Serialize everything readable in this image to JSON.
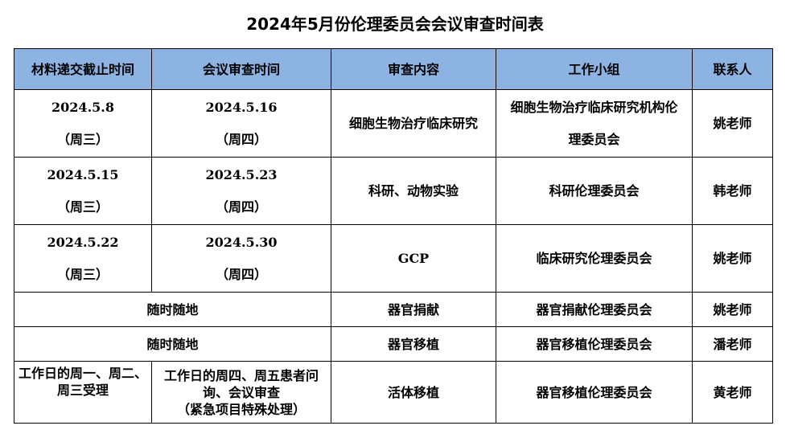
{
  "title": "2024年5月份伦理委员会会议审查时间表",
  "headers": [
    "材料递交截止时间",
    "会议审查时间",
    "审查内容",
    "工作小组",
    "联系人"
  ],
  "header_bg": "#8db3e2",
  "rows": [
    {
      "deadline": "2024.5.8",
      "deadline_day": "（周三）",
      "meeting": "2024.5.16",
      "meeting_day": "（周四）",
      "content": "细胞生物治疗临床研究",
      "group": "细胞生物治疗临床研究机构伦理委员会",
      "contact": "姚老师"
    },
    {
      "deadline": "2024.5.15",
      "deadline_day": "（周三）",
      "meeting": "2024.5.23",
      "meeting_day": "（周四）",
      "content": "科研、动物实验",
      "group": "科研伦理委员会",
      "contact": "韩老师"
    },
    {
      "deadline": "2024.5.22",
      "deadline_day": "（周三）",
      "meeting": "2024.5.30",
      "meeting_day": "（周四）",
      "content": "GCP",
      "group": "临床研究伦理委员会",
      "contact": "姚老师"
    },
    {
      "time": "随时随地",
      "content": "器官捐献",
      "group": "器官捐献伦理委员会",
      "contact": "姚老师"
    },
    {
      "time": "随时随地",
      "content": "器官移植",
      "group": "器官移植伦理委员会",
      "contact": "潘老师"
    },
    {
      "deadline": "工作日的周一、周二、周三受理",
      "meeting": "工作日的周四、周五患者问询、会议审查",
      "meeting_note": "（紧急项目特殊处理）",
      "content": "活体移植",
      "group": "器官移植伦理委员会",
      "contact": "黄老师"
    }
  ]
}
